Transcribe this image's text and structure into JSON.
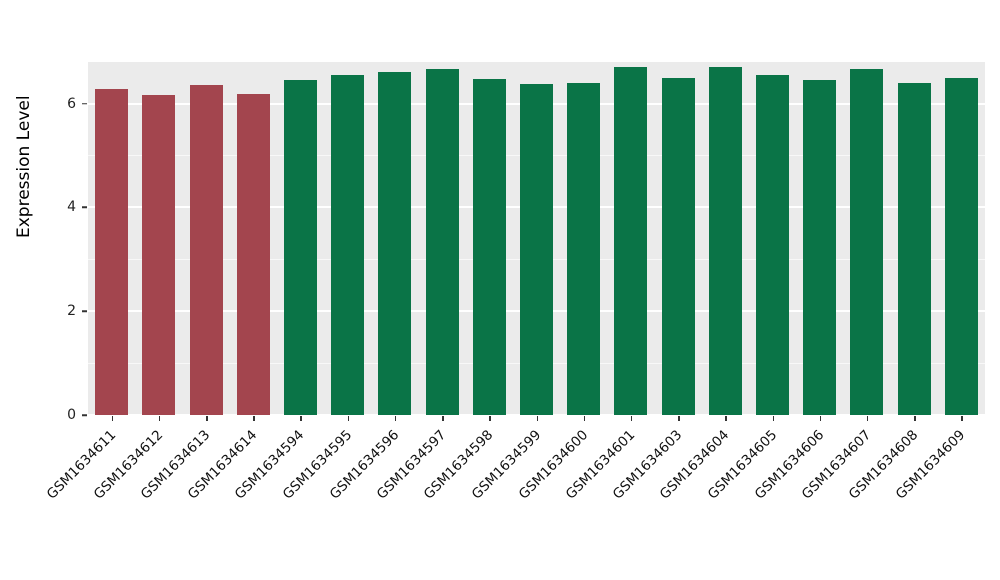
{
  "chart_data": {
    "type": "bar",
    "title": "",
    "xlabel": "",
    "ylabel": "Expression Level",
    "ylim": [
      0,
      6.8
    ],
    "yticks": [
      0,
      2,
      4,
      6
    ],
    "yticks_minor": [
      1,
      3,
      5
    ],
    "grid": true,
    "panel_background": "#ebebeb",
    "categories": [
      "GSM1634611",
      "GSM1634612",
      "GSM1634613",
      "GSM1634614",
      "GSM1634594",
      "GSM1634595",
      "GSM1634596",
      "GSM1634597",
      "GSM1634598",
      "GSM1634599",
      "GSM1634600",
      "GSM1634601",
      "GSM1634603",
      "GSM1634604",
      "GSM1634605",
      "GSM1634606",
      "GSM1634607",
      "GSM1634608",
      "GSM1634609"
    ],
    "values": [
      6.28,
      6.17,
      6.35,
      6.19,
      6.45,
      6.55,
      6.6,
      6.67,
      6.47,
      6.37,
      6.4,
      6.7,
      6.5,
      6.7,
      6.55,
      6.45,
      6.67,
      6.4,
      6.5
    ],
    "bar_colors": [
      "#a3454e",
      "#a3454e",
      "#a3454e",
      "#a3454e",
      "#0a7447",
      "#0a7447",
      "#0a7447",
      "#0a7447",
      "#0a7447",
      "#0a7447",
      "#0a7447",
      "#0a7447",
      "#0a7447",
      "#0a7447",
      "#0a7447",
      "#0a7447",
      "#0a7447",
      "#0a7447",
      "#0a7447"
    ],
    "legend": "none"
  }
}
